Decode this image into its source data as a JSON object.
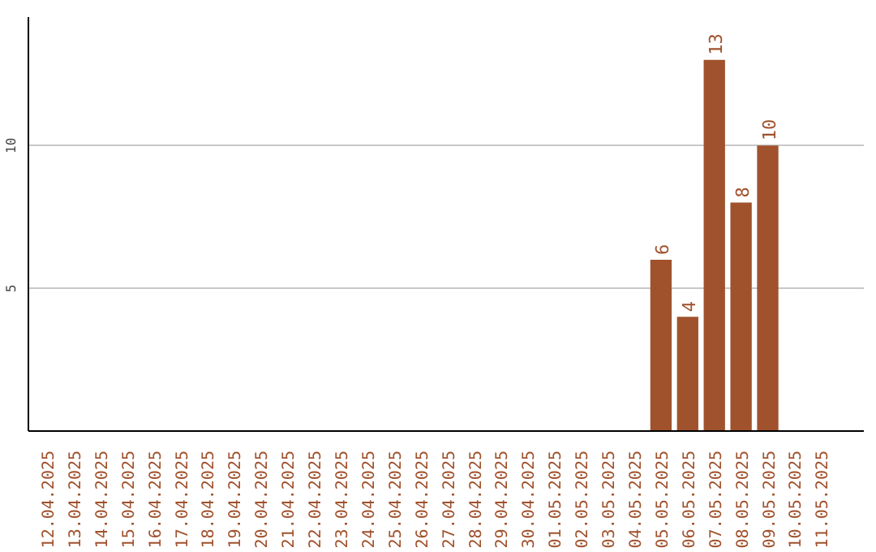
{
  "chart_data": {
    "type": "bar",
    "categories": [
      "12.04.2025",
      "13.04.2025",
      "14.04.2025",
      "15.04.2025",
      "16.04.2025",
      "17.04.2025",
      "18.04.2025",
      "19.04.2025",
      "20.04.2025",
      "21.04.2025",
      "22.04.2025",
      "23.04.2025",
      "24.04.2025",
      "25.04.2025",
      "26.04.2025",
      "27.04.2025",
      "28.04.2025",
      "29.04.2025",
      "30.04.2025",
      "01.05.2025",
      "02.05.2025",
      "03.05.2025",
      "04.05.2025",
      "05.05.2025",
      "06.05.2025",
      "07.05.2025",
      "08.05.2025",
      "09.05.2025",
      "10.05.2025",
      "11.05.2025"
    ],
    "values": [
      0,
      0,
      0,
      0,
      0,
      0,
      0,
      0,
      0,
      0,
      0,
      0,
      0,
      0,
      0,
      0,
      0,
      0,
      0,
      0,
      0,
      0,
      0,
      6,
      4,
      13,
      8,
      10,
      0,
      0
    ],
    "value_labels": [
      null,
      null,
      null,
      null,
      null,
      null,
      null,
      null,
      null,
      null,
      null,
      null,
      null,
      null,
      null,
      null,
      null,
      null,
      null,
      null,
      null,
      null,
      null,
      "6",
      "4",
      "13",
      "8",
      "10",
      null,
      null
    ],
    "color": "#a0522d",
    "ylim": [
      0,
      14.5
    ],
    "yticks": [
      5,
      10
    ],
    "grid": "y"
  }
}
